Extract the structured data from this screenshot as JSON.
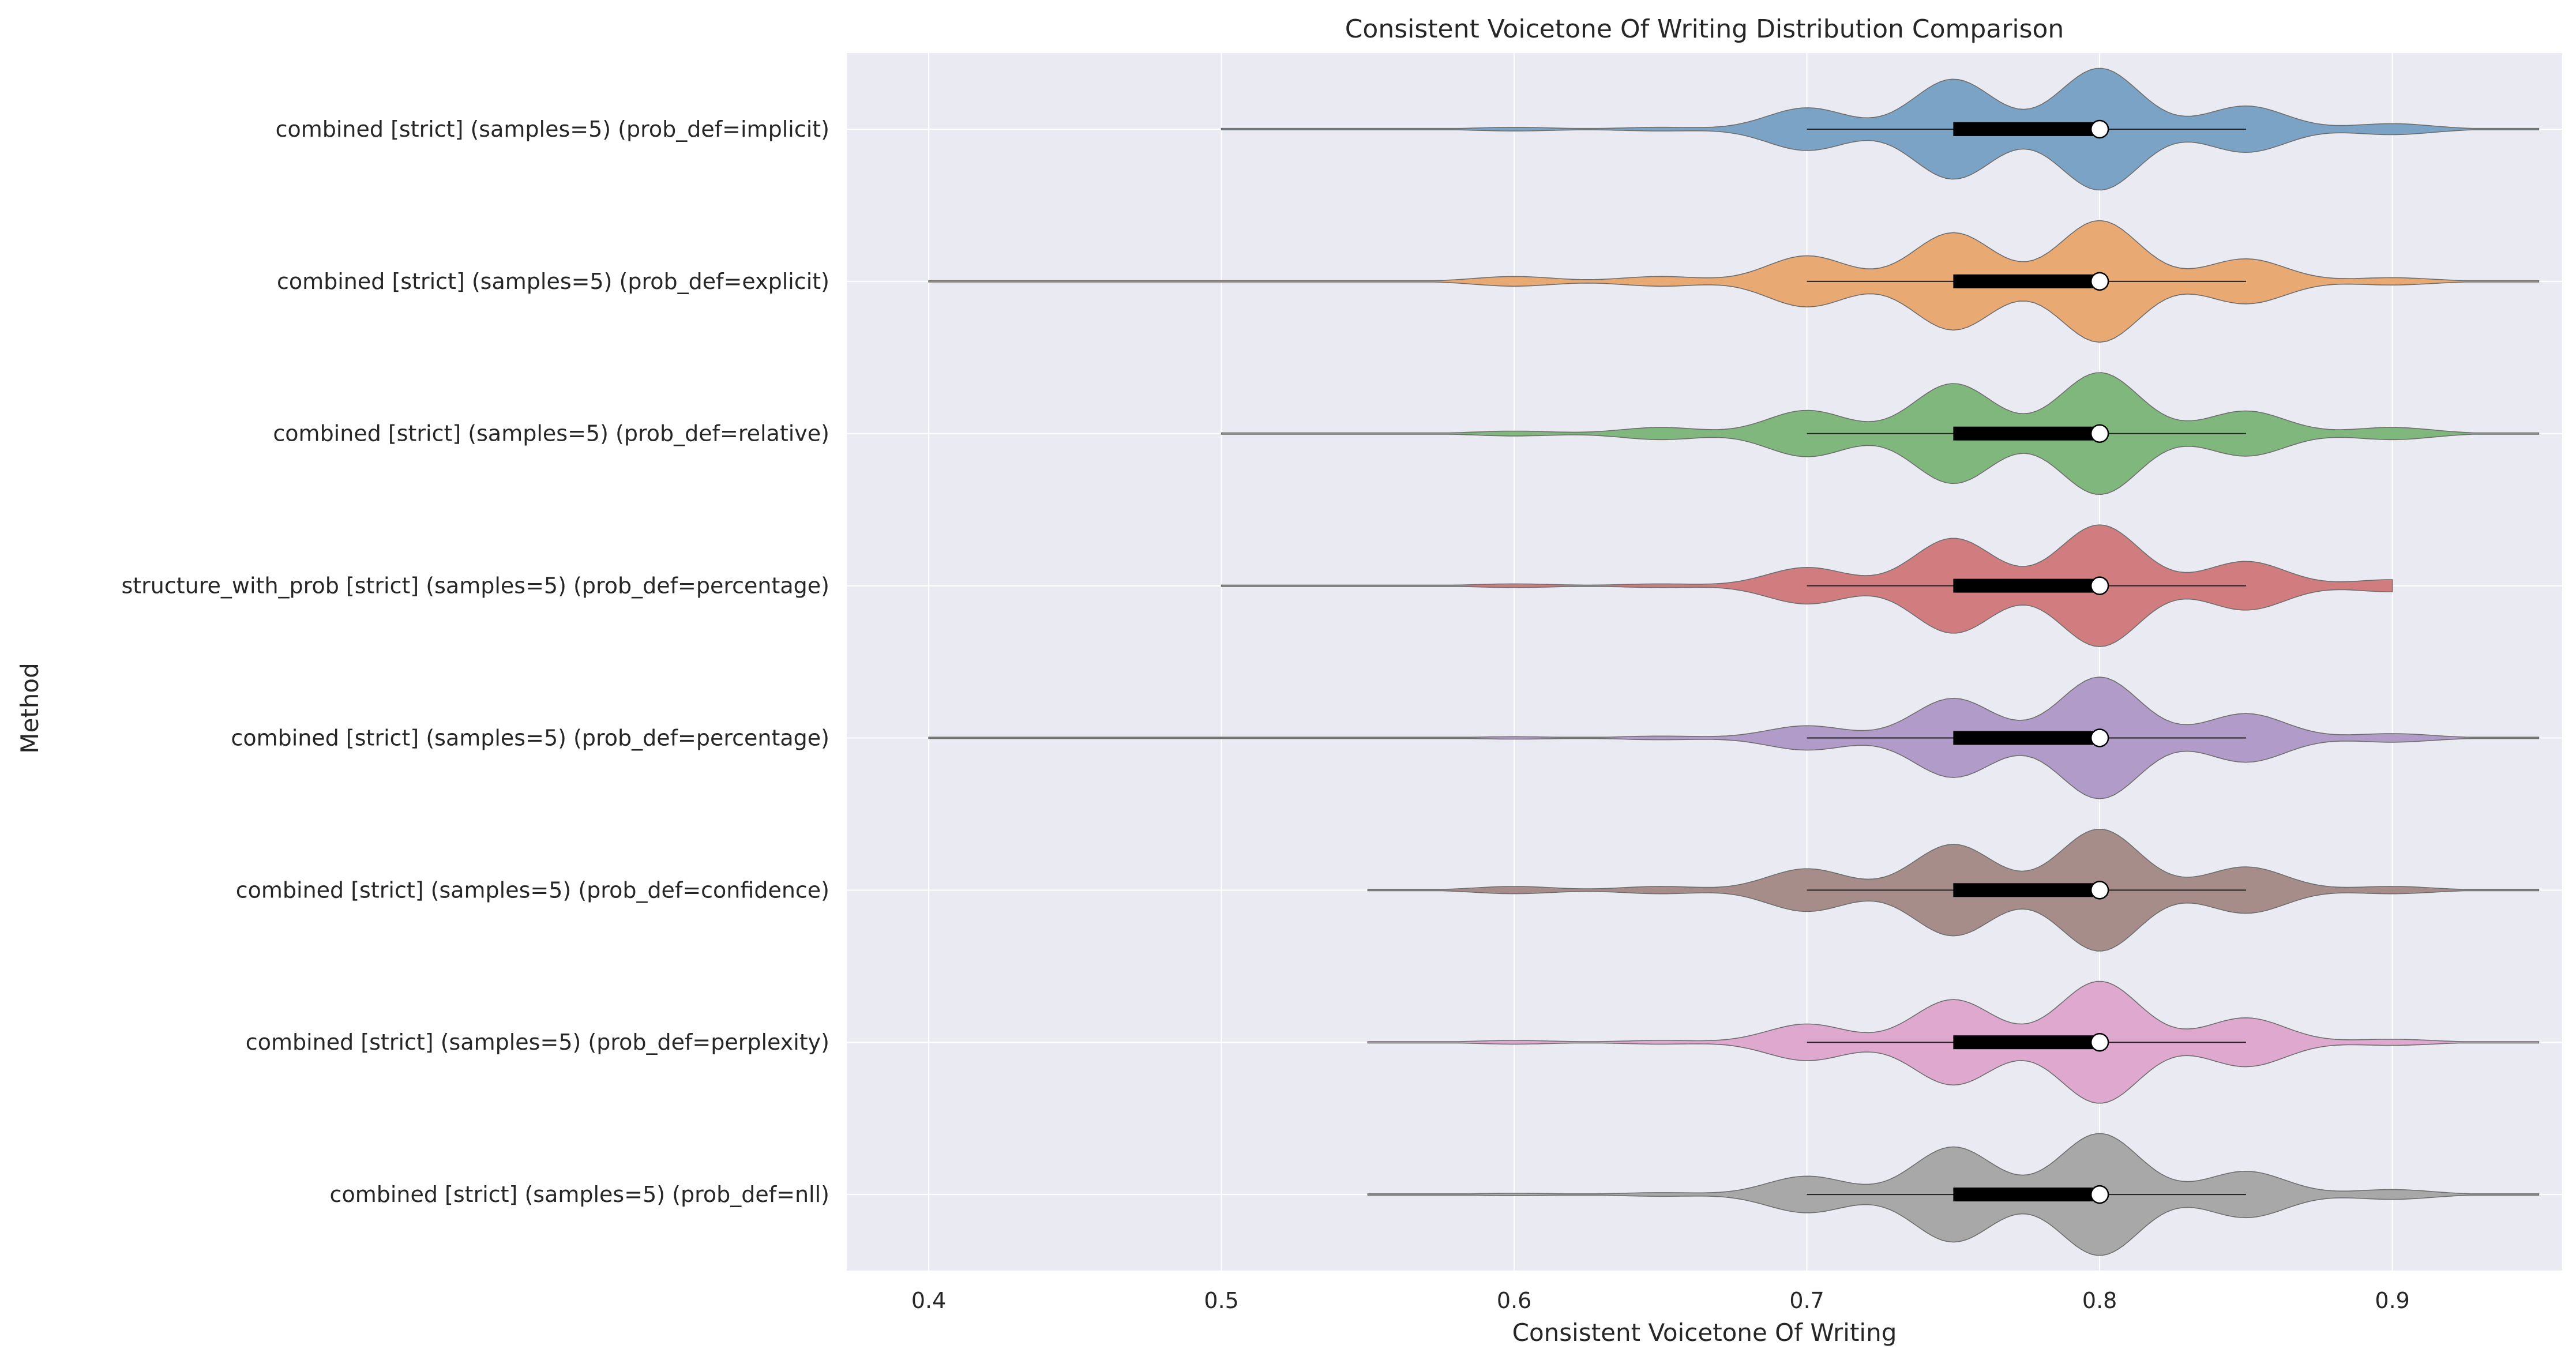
{
  "chart_data": {
    "type": "violin",
    "title": "Consistent Voicetone Of Writing Distribution Comparison",
    "xlabel": "Consistent Voicetone Of Writing",
    "ylabel": "Method",
    "xlim": [
      0.372,
      0.958
    ],
    "xticks": [
      0.4,
      0.5,
      0.6,
      0.7,
      0.8,
      0.9
    ],
    "xtick_labels": [
      "0.4",
      "0.5",
      "0.6",
      "0.7",
      "0.8",
      "0.9"
    ],
    "grid": true,
    "orientation": "horizontal",
    "series": [
      {
        "name": "combined [strict] (samples=5) (prob_def=implicit)",
        "color": "#7ba3c5",
        "min": 0.5,
        "max": 0.95,
        "q1": 0.75,
        "median": 0.8,
        "q3": 0.8,
        "whisker_low": 0.7,
        "whisker_high": 0.85,
        "clip_max": null,
        "modes": [
          [
            0.6,
            0.03
          ],
          [
            0.65,
            0.03
          ],
          [
            0.7,
            0.35
          ],
          [
            0.75,
            0.82
          ],
          [
            0.8,
            1.0
          ],
          [
            0.85,
            0.38
          ],
          [
            0.9,
            0.09
          ]
        ]
      },
      {
        "name": "combined [strict] (samples=5) (prob_def=explicit)",
        "color": "#e8a972",
        "min": 0.4,
        "max": 0.95,
        "q1": 0.75,
        "median": 0.8,
        "q3": 0.8,
        "whisker_low": 0.7,
        "whisker_high": 0.85,
        "clip_max": null,
        "modes": [
          [
            0.6,
            0.08
          ],
          [
            0.65,
            0.08
          ],
          [
            0.7,
            0.42
          ],
          [
            0.75,
            0.8
          ],
          [
            0.8,
            1.0
          ],
          [
            0.85,
            0.37
          ],
          [
            0.9,
            0.06
          ]
        ]
      },
      {
        "name": "combined [strict] (samples=5) (prob_def=relative)",
        "color": "#80b77d",
        "min": 0.5,
        "max": 0.95,
        "q1": 0.75,
        "median": 0.8,
        "q3": 0.8,
        "whisker_low": 0.7,
        "whisker_high": 0.85,
        "clip_max": null,
        "modes": [
          [
            0.6,
            0.04
          ],
          [
            0.65,
            0.1
          ],
          [
            0.7,
            0.38
          ],
          [
            0.75,
            0.82
          ],
          [
            0.8,
            1.0
          ],
          [
            0.85,
            0.37
          ],
          [
            0.9,
            0.1
          ]
        ]
      },
      {
        "name": "structure_with_prob [strict] (samples=5) (prob_def=percentage)",
        "color": "#d17d80",
        "min": 0.5,
        "max": 0.95,
        "q1": 0.75,
        "median": 0.8,
        "q3": 0.8,
        "whisker_low": 0.7,
        "whisker_high": 0.85,
        "clip_max": 0.9,
        "modes": [
          [
            0.6,
            0.03
          ],
          [
            0.65,
            0.03
          ],
          [
            0.7,
            0.3
          ],
          [
            0.75,
            0.78
          ],
          [
            0.8,
            1.0
          ],
          [
            0.85,
            0.4
          ],
          [
            0.9,
            0.1
          ]
        ]
      },
      {
        "name": "combined [strict] (samples=5) (prob_def=percentage)",
        "color": "#b19bc9",
        "min": 0.4,
        "max": 0.95,
        "q1": 0.75,
        "median": 0.8,
        "q3": 0.8,
        "whisker_low": 0.7,
        "whisker_high": 0.85,
        "clip_max": null,
        "modes": [
          [
            0.6,
            0.02
          ],
          [
            0.65,
            0.03
          ],
          [
            0.7,
            0.2
          ],
          [
            0.75,
            0.65
          ],
          [
            0.8,
            1.0
          ],
          [
            0.85,
            0.4
          ],
          [
            0.9,
            0.07
          ]
        ]
      },
      {
        "name": "combined [strict] (samples=5) (prob_def=confidence)",
        "color": "#a78d8a",
        "min": 0.55,
        "max": 0.95,
        "q1": 0.75,
        "median": 0.8,
        "q3": 0.8,
        "whisker_low": 0.7,
        "whisker_high": 0.85,
        "clip_max": null,
        "modes": [
          [
            0.6,
            0.06
          ],
          [
            0.65,
            0.06
          ],
          [
            0.7,
            0.35
          ],
          [
            0.75,
            0.75
          ],
          [
            0.8,
            1.0
          ],
          [
            0.85,
            0.38
          ],
          [
            0.9,
            0.06
          ]
        ]
      },
      {
        "name": "combined [strict] (samples=5) (prob_def=perplexity)",
        "color": "#dfa9cf",
        "min": 0.55,
        "max": 0.95,
        "q1": 0.75,
        "median": 0.8,
        "q3": 0.8,
        "whisker_low": 0.7,
        "whisker_high": 0.85,
        "clip_max": null,
        "modes": [
          [
            0.6,
            0.03
          ],
          [
            0.65,
            0.03
          ],
          [
            0.7,
            0.3
          ],
          [
            0.75,
            0.7
          ],
          [
            0.8,
            1.0
          ],
          [
            0.85,
            0.4
          ],
          [
            0.9,
            0.05
          ]
        ]
      },
      {
        "name": "combined [strict] (samples=5) (prob_def=nll)",
        "color": "#a8a8a8",
        "min": 0.55,
        "max": 0.95,
        "q1": 0.75,
        "median": 0.8,
        "q3": 0.8,
        "whisker_low": 0.7,
        "whisker_high": 0.85,
        "clip_max": null,
        "modes": [
          [
            0.6,
            0.02
          ],
          [
            0.65,
            0.03
          ],
          [
            0.7,
            0.3
          ],
          [
            0.75,
            0.78
          ],
          [
            0.8,
            1.0
          ],
          [
            0.85,
            0.38
          ],
          [
            0.9,
            0.08
          ]
        ]
      }
    ]
  }
}
